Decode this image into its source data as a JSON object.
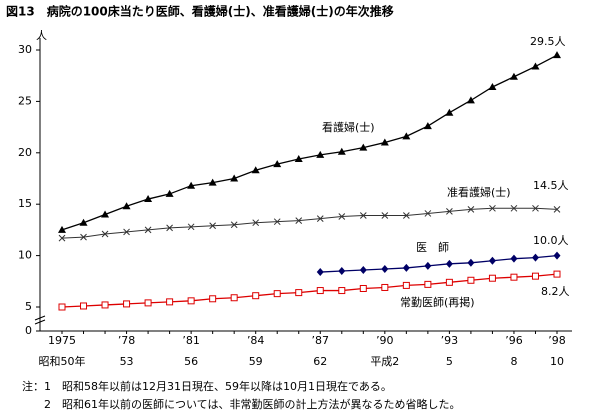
{
  "chart_data": {
    "type": "line",
    "title": "図13　病院の100床当たり医師、看護婦(士)、准看護婦(士)の年次推移",
    "y_unit": "人",
    "categories": [
      "1975",
      null,
      null,
      "’78",
      null,
      null,
      "’81",
      null,
      null,
      "’84",
      null,
      null,
      "’87",
      null,
      null,
      "’90",
      null,
      null,
      "’93",
      null,
      null,
      "’96",
      null,
      "’98"
    ],
    "categories_era": [
      "昭和50年",
      null,
      null,
      "53",
      null,
      null,
      "56",
      null,
      null,
      "59",
      null,
      null,
      "62",
      null,
      null,
      "平成2",
      null,
      null,
      "5",
      null,
      null,
      "8",
      null,
      "10"
    ],
    "series": [
      {
        "name": "看護婦(士)",
        "color": "#000000",
        "marker": "triangle",
        "end_label": "29.5人",
        "values": [
          12.5,
          13.2,
          14.0,
          14.8,
          15.5,
          16.0,
          16.8,
          17.1,
          17.5,
          18.3,
          18.9,
          19.4,
          19.8,
          20.1,
          20.5,
          21.0,
          21.6,
          22.6,
          23.9,
          25.1,
          26.4,
          27.4,
          28.4,
          29.5
        ]
      },
      {
        "name": "准看護婦(士)",
        "color": "#333333",
        "marker": "cross",
        "end_label": "14.5人",
        "values": [
          11.7,
          11.8,
          12.1,
          12.3,
          12.5,
          12.7,
          12.8,
          12.9,
          13.0,
          13.2,
          13.3,
          13.4,
          13.6,
          13.8,
          13.9,
          13.9,
          13.9,
          14.1,
          14.3,
          14.5,
          14.6,
          14.6,
          14.6,
          14.5
        ]
      },
      {
        "name": "医　師",
        "color": "#000066",
        "marker": "diamond",
        "end_label": "10.0人",
        "values": [
          null,
          null,
          null,
          null,
          null,
          null,
          null,
          null,
          null,
          null,
          null,
          null,
          8.4,
          8.5,
          8.6,
          8.7,
          8.8,
          9.0,
          9.2,
          9.3,
          9.5,
          9.7,
          9.8,
          10.0
        ]
      },
      {
        "name": "常勤医師(再掲)",
        "color": "#dd0000",
        "marker": "square",
        "end_label": "8.2人",
        "values": [
          5.0,
          5.1,
          5.2,
          5.3,
          5.4,
          5.5,
          5.6,
          5.8,
          5.9,
          6.1,
          6.3,
          6.4,
          6.6,
          6.6,
          6.8,
          6.9,
          7.1,
          7.2,
          7.4,
          7.6,
          7.8,
          7.9,
          8.0,
          8.2
        ]
      }
    ],
    "ylim": [
      0,
      30
    ],
    "yticks": [
      0,
      5,
      10,
      15,
      20,
      25,
      30
    ],
    "axis_break": true,
    "notes": [
      "注：1　昭和58年以前は12月31日現在、59年以降は10月1日現在である。",
      "　　2　昭和61年以前の医師については、非常勤医師の計上方法が異なるため省略した。"
    ]
  }
}
